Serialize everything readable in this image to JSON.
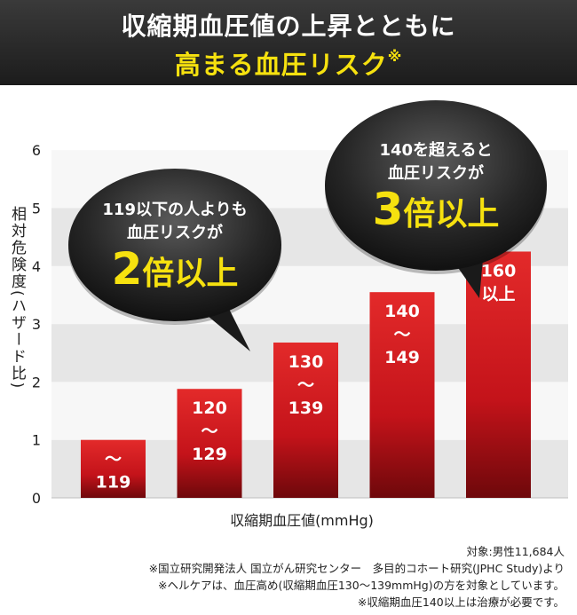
{
  "header": {
    "title_line1": "収縮期血圧値の上昇とともに",
    "title_line2": "高まる血圧リスク",
    "title_mark": "※"
  },
  "colors": {
    "bar": "#c4131a",
    "bar_dark": "#7a0a0e",
    "accent": "#f6e10f",
    "bubble": "#1a1a1a"
  },
  "chart_data": {
    "type": "bar",
    "categories": [
      "〜\n119",
      "120\n〜\n129",
      "130\n〜\n139",
      "140\n〜\n149",
      "160\n以上"
    ],
    "values": [
      1.0,
      1.88,
      2.68,
      3.55,
      4.25
    ],
    "ylim": [
      0,
      6
    ],
    "yticks": [
      0,
      1,
      2,
      3,
      4,
      5,
      6
    ],
    "xlabel": "収縮期血圧値(mmHg)",
    "ylabel": "相対危険度(ハザード比)",
    "grid": true
  },
  "bubbles": [
    {
      "line1": "119以下の人よりも",
      "line2": "血圧リスクが",
      "big_num": "2",
      "big_text": "倍以上"
    },
    {
      "line1": "140を超えると",
      "line2": "血圧リスクが",
      "big_num": "3",
      "big_text": "倍以上"
    }
  ],
  "notes": [
    "対象:男性11,684人",
    "※国立研究開発法人 国立がん研究センター　多目的コホート研究(JPHC Study)より",
    "※ヘルケアは、血圧高め(収縮期血圧130〜139mmHg)の方を対象としています。",
    "※収縮期血圧140以上は治療が必要です。"
  ]
}
